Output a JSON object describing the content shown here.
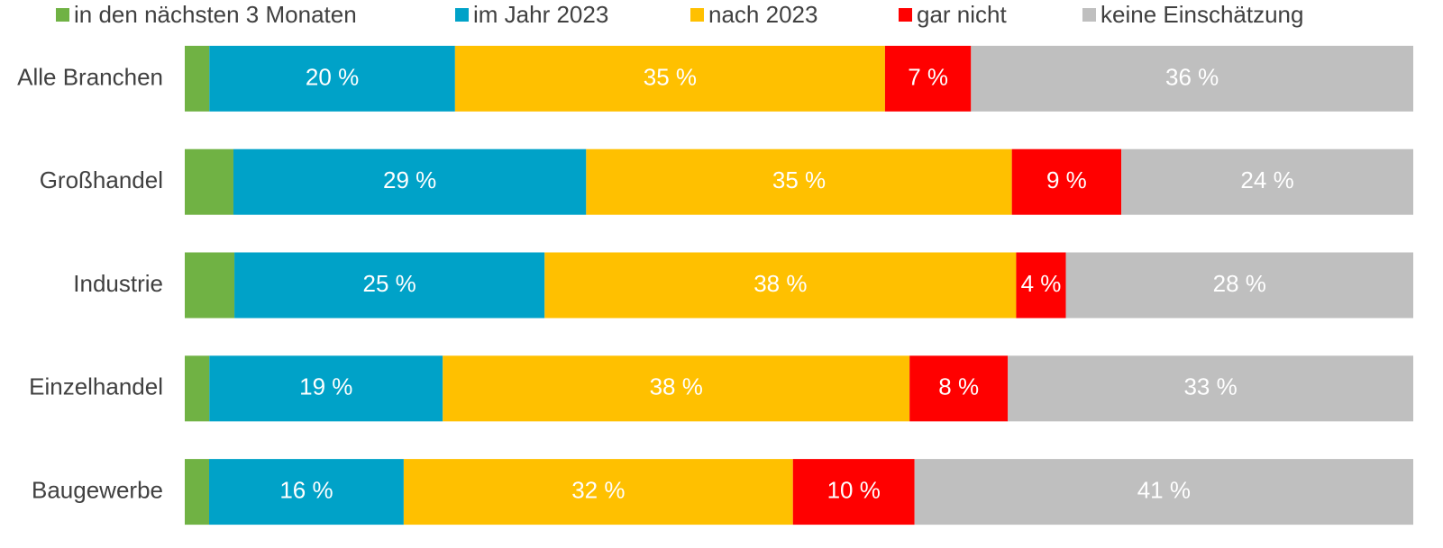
{
  "chart_data": {
    "type": "bar",
    "orientation": "horizontal",
    "stacked": "percent",
    "categories": [
      "Alle Branchen",
      "Großhandel",
      "Industrie",
      "Einzelhandel",
      "Baugewerbe"
    ],
    "series": [
      {
        "name": "in den nächsten 3 Monaten",
        "color": "#70b244",
        "values": [
          2,
          4,
          4,
          2,
          2
        ]
      },
      {
        "name": "im Jahr 2023",
        "color": "#00a2c8",
        "values": [
          20,
          29,
          25,
          19,
          16
        ],
        "value_labels": [
          "20 %",
          "29 %",
          "25 %",
          "19 %",
          "16 %"
        ]
      },
      {
        "name": "nach 2023",
        "color": "#ffc000",
        "values": [
          35,
          35,
          38,
          38,
          32
        ],
        "value_labels": [
          "35 %",
          "35 %",
          "38 %",
          "38 %",
          "32 %"
        ]
      },
      {
        "name": "gar nicht",
        "color": "#ff0000",
        "values": [
          7,
          9,
          4,
          8,
          10
        ],
        "value_labels": [
          "7 %",
          "9 %",
          "4 %",
          "8 %",
          "10 %"
        ]
      },
      {
        "name": "keine Einschätzung",
        "color": "#bfbfbf",
        "values": [
          36,
          24,
          28,
          33,
          41
        ],
        "value_labels": [
          "36 %",
          "24 %",
          "28 %",
          "33 %",
          "41 %"
        ]
      }
    ],
    "legend": "top"
  }
}
